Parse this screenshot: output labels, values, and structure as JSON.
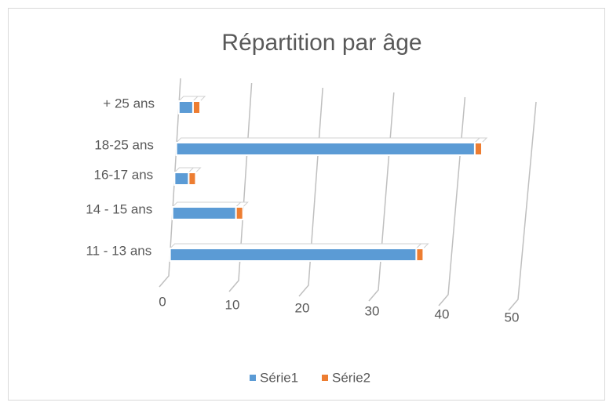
{
  "chart_data": {
    "type": "bar3d",
    "title": "Répartition par âge",
    "categories": [
      "11 - 13 ans",
      "14 - 15 ans",
      "16-17 ans",
      "18-25 ans",
      "+ 25 ans"
    ],
    "series": [
      {
        "name": "Série1",
        "color": "#5b9bd5",
        "values": [
          35,
          9,
          2,
          42,
          2
        ]
      },
      {
        "name": "Série2",
        "color": "#ed7d31",
        "values": [
          1,
          1,
          1,
          1,
          1
        ]
      }
    ],
    "xlim": [
      0,
      50
    ],
    "xticks": [
      0,
      10,
      20,
      30,
      40,
      50
    ],
    "grid": true,
    "legend": "bottom"
  }
}
